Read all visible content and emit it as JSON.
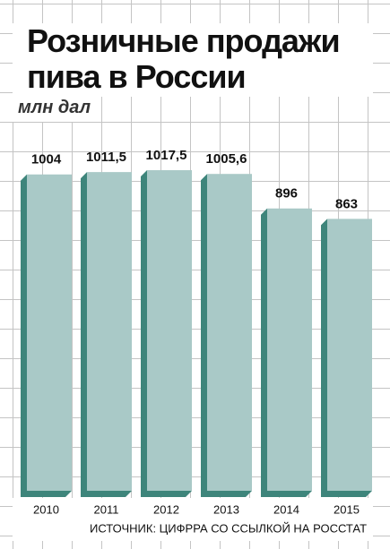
{
  "chart_data": {
    "type": "bar",
    "title": "Розничные продажи пива в России",
    "subtitle": "млн дал",
    "source": "ИСТОЧНИК: ЦИФРРА СО ССЫЛКОЙ НА РОССТАТ",
    "categories": [
      "2010",
      "2011",
      "2012",
      "2013",
      "2014",
      "2015"
    ],
    "values": [
      1004,
      1011.5,
      1017.5,
      1005.6,
      896,
      863
    ],
    "value_labels": [
      "1004",
      "1011,5",
      "1017,5",
      "1005,6",
      "896",
      "863"
    ],
    "color": "#a9c9c7",
    "side_color": "#3e857b",
    "ylim": [
      0,
      1100
    ]
  }
}
